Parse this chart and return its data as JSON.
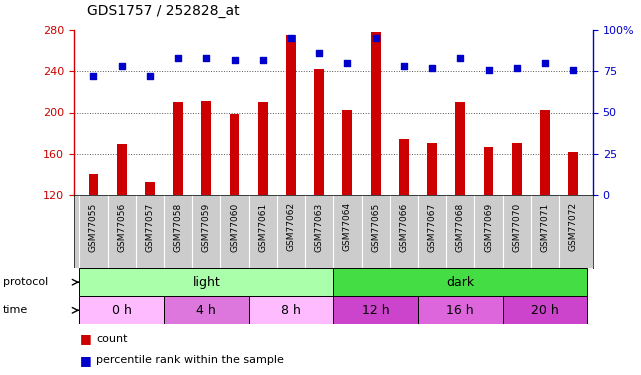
{
  "title": "GDS1757 / 252828_at",
  "samples": [
    "GSM77055",
    "GSM77056",
    "GSM77057",
    "GSM77058",
    "GSM77059",
    "GSM77060",
    "GSM77061",
    "GSM77062",
    "GSM77063",
    "GSM77064",
    "GSM77065",
    "GSM77066",
    "GSM77067",
    "GSM77068",
    "GSM77069",
    "GSM77070",
    "GSM77071",
    "GSM77072"
  ],
  "counts": [
    140,
    169,
    133,
    210,
    211,
    199,
    210,
    275,
    242,
    202,
    278,
    174,
    170,
    210,
    167,
    170,
    202,
    162
  ],
  "percentile_ranks": [
    72,
    78,
    72,
    83,
    83,
    82,
    82,
    95,
    86,
    80,
    95,
    78,
    77,
    83,
    76,
    77,
    80,
    76
  ],
  "ylim_left": [
    120,
    280
  ],
  "ylim_right": [
    0,
    100
  ],
  "yticks_left": [
    120,
    160,
    200,
    240,
    280
  ],
  "yticks_right": [
    0,
    25,
    50,
    75,
    100
  ],
  "bar_color": "#cc0000",
  "scatter_color": "#0000cc",
  "protocol_groups": [
    {
      "label": "light",
      "start": 0,
      "end": 9,
      "color": "#aaffaa"
    },
    {
      "label": "dark",
      "start": 9,
      "end": 18,
      "color": "#44dd44"
    }
  ],
  "time_groups": [
    {
      "label": "0 h",
      "start": 0,
      "end": 3,
      "color": "#ffbbff"
    },
    {
      "label": "4 h",
      "start": 3,
      "end": 6,
      "color": "#dd77dd"
    },
    {
      "label": "8 h",
      "start": 6,
      "end": 9,
      "color": "#ffbbff"
    },
    {
      "label": "12 h",
      "start": 9,
      "end": 12,
      "color": "#cc44cc"
    },
    {
      "label": "16 h",
      "start": 12,
      "end": 15,
      "color": "#dd66dd"
    },
    {
      "label": "20 h",
      "start": 15,
      "end": 18,
      "color": "#cc44cc"
    }
  ],
  "grid_color": "#555555",
  "bg_color": "#ffffff",
  "label_color_left": "#cc0000",
  "label_color_right": "#0000cc",
  "xtick_bg": "#cccccc"
}
